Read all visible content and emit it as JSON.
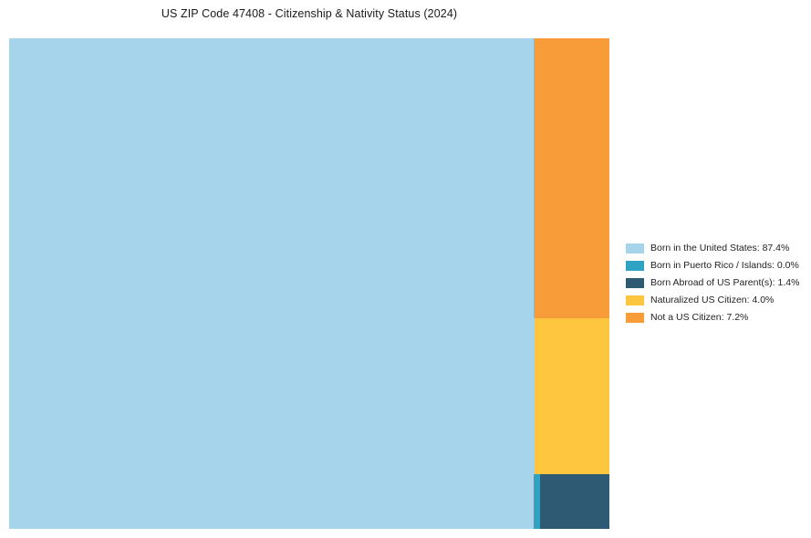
{
  "title": "US ZIP Code 47408 - Citizenship & Nativity Status (2024)",
  "chart_data": {
    "type": "treemap",
    "title": "US ZIP Code 47408 - Citizenship & Nativity Status (2024)",
    "categories": [
      "Born in the United States",
      "Born in Puerto Rico / Islands",
      "Born Abroad of US Parent(s)",
      "Naturalized US Citizen",
      "Not a US Citizen"
    ],
    "values": [
      87.4,
      0.0,
      1.4,
      4.0,
      7.2
    ],
    "unit": "%",
    "colors": [
      "#a6d4ea",
      "#2ea3c4",
      "#2f5a73",
      "#fdc63e",
      "#f89c39"
    ],
    "legend_position": "right",
    "legend_labels": [
      "Born in the United States: 87.4%",
      "Born in Puerto Rico / Islands: 0.0%",
      "Born Abroad of US Parent(s): 1.4%",
      "Naturalized US Citizen: 4.0%",
      "Not a US Citizen: 7.2%"
    ],
    "layout": {
      "main_block": "Born in the United States (left, full height)",
      "right_column_top_to_bottom": [
        "Not a US Citizen",
        "Naturalized US Citizen",
        "Born in Puerto Rico / Islands (thin sliver) + Born Abroad of US Parent(s)"
      ]
    }
  }
}
